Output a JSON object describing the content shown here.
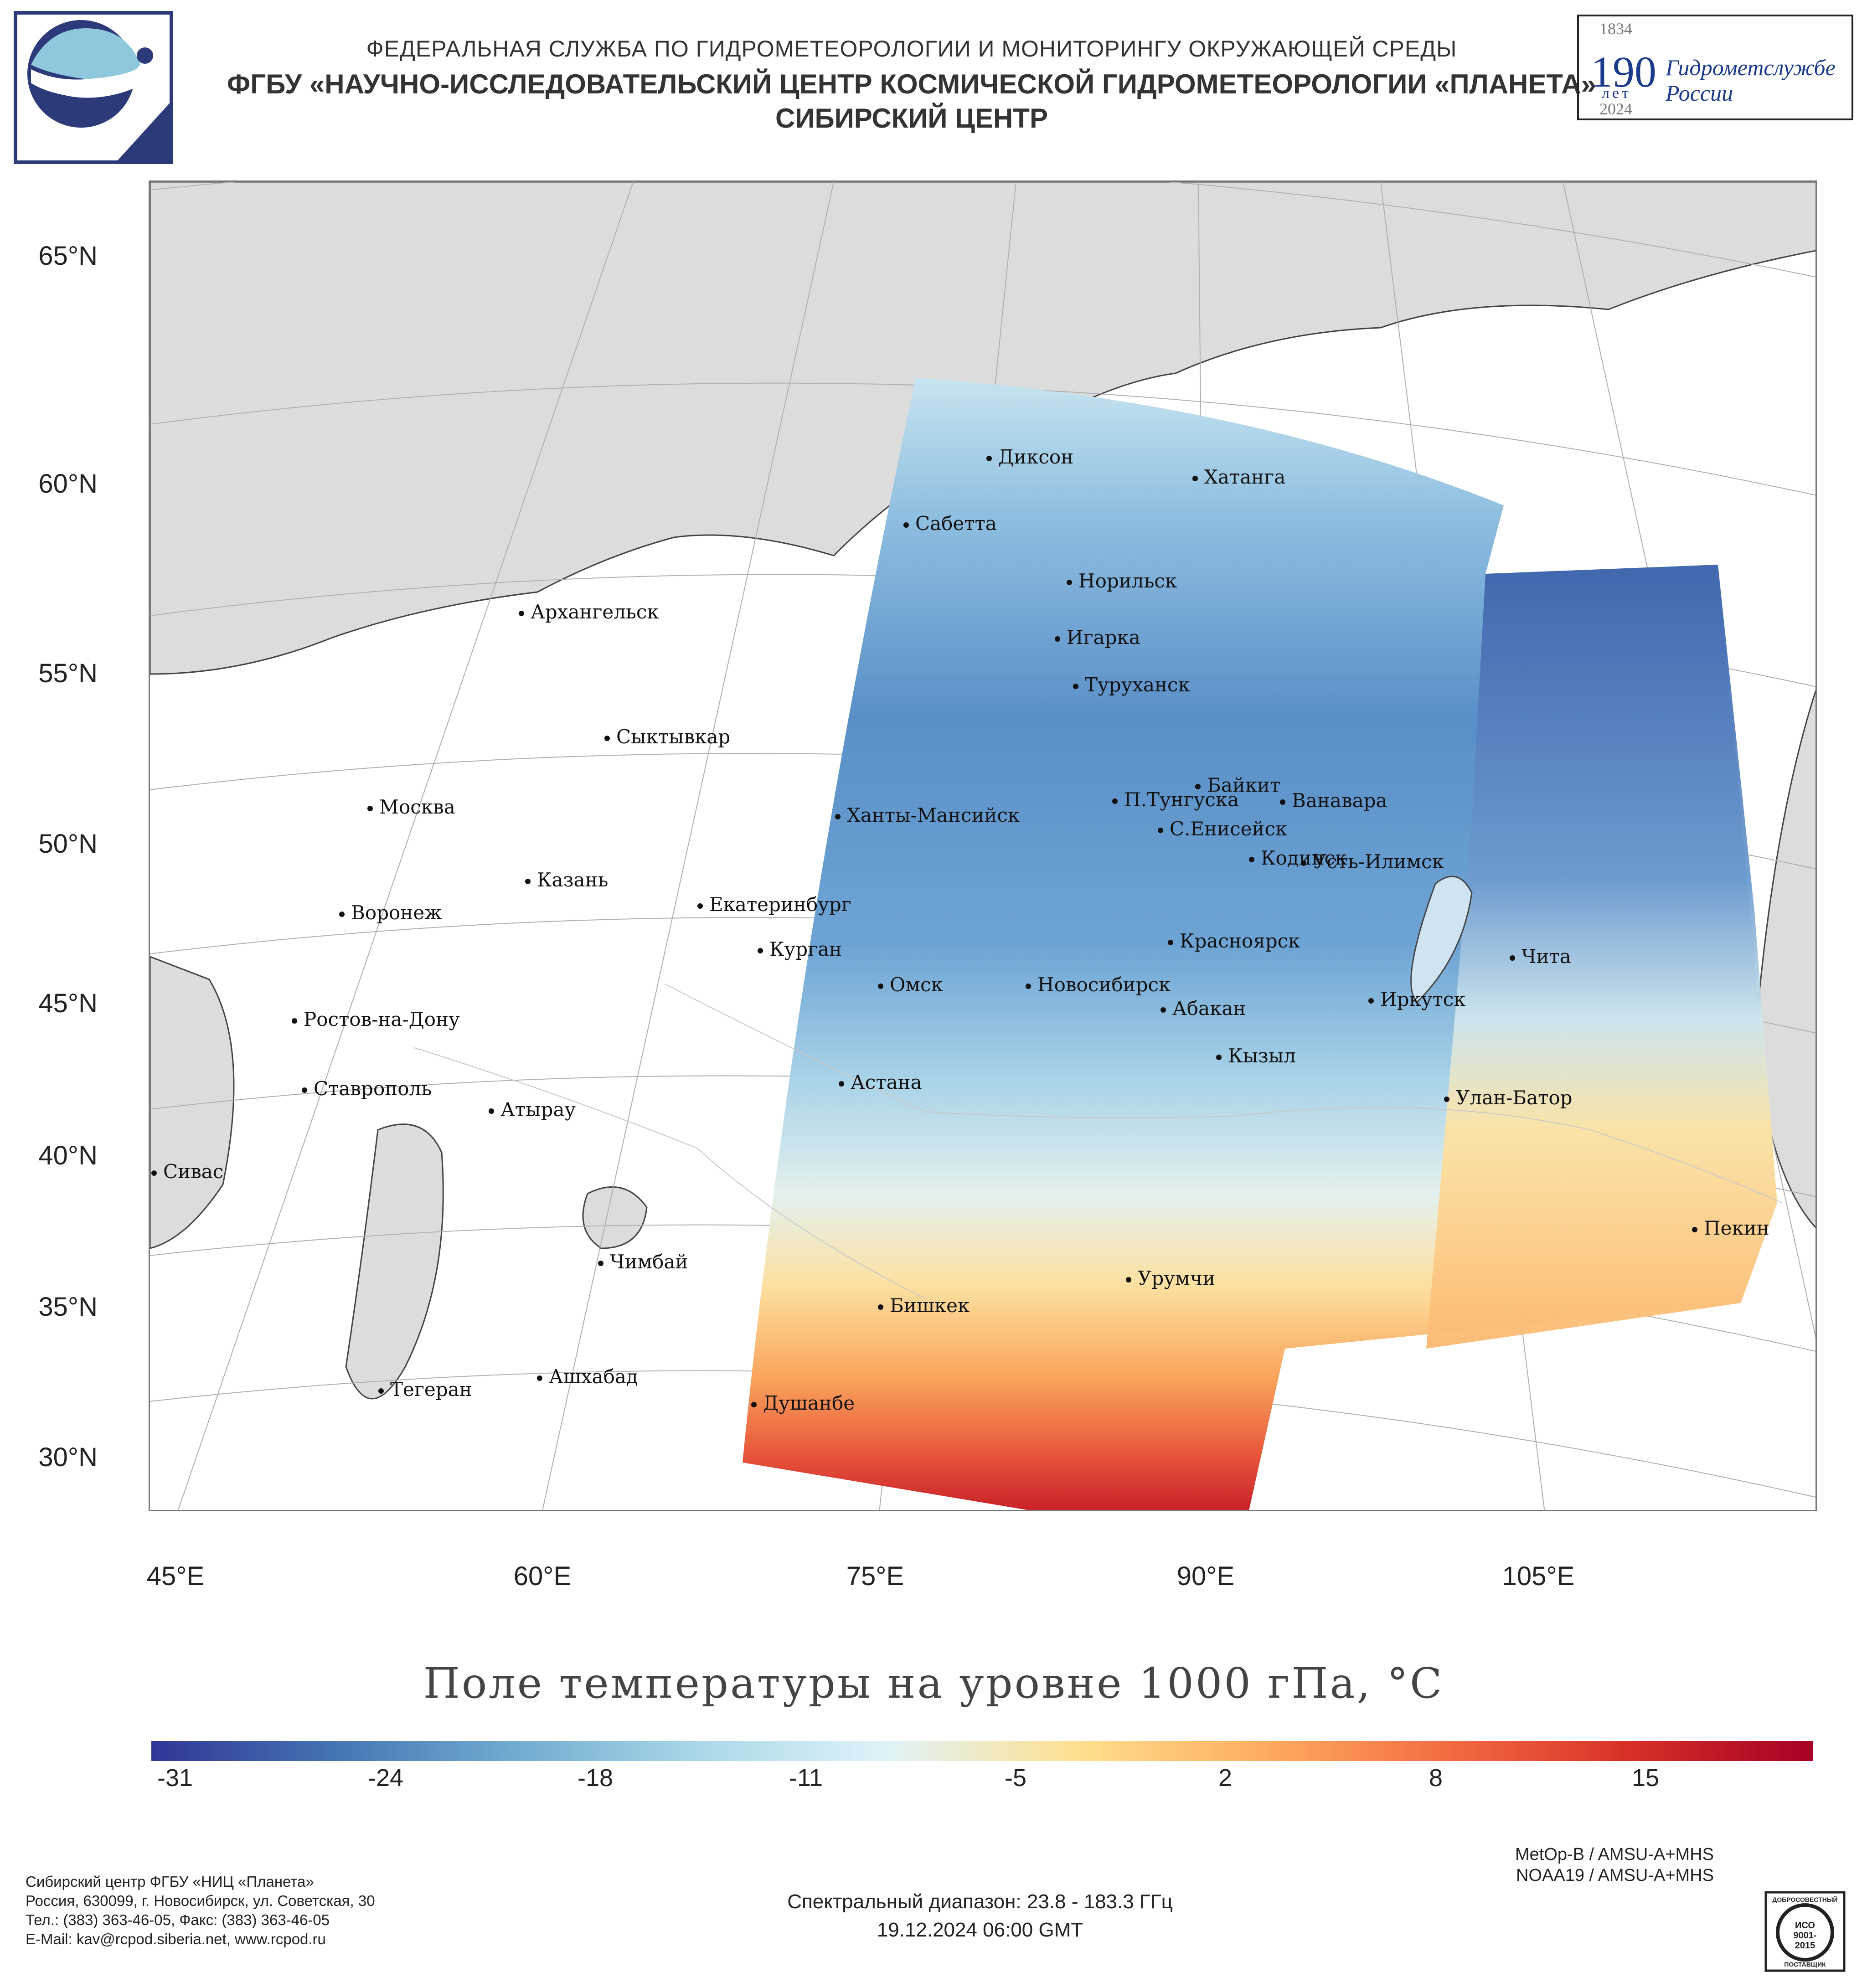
{
  "header": {
    "agency": "ФЕДЕРАЛЬНАЯ СЛУЖБА ПО ГИДРОМЕТЕОРОЛОГИИ И МОНИТОРИНГУ ОКРУЖАЮЩЕЙ СРЕДЫ",
    "center": "ФГБУ «НАУЧНО-ИССЛЕДОВАТЕЛЬСКИЙ ЦЕНТР КОСМИЧЕСКОЙ ГИДРОМЕТЕОРОЛОГИИ «ПЛАНЕТА»",
    "branch": "СИБИРСКИЙ ЦЕНТР"
  },
  "anniversary": {
    "year_start": "1834",
    "number": "190",
    "word": "лет",
    "org_line1": "Гидрометслужбе",
    "org_line2": "России",
    "year_end": "2024"
  },
  "map": {
    "lat_labels": [
      "65°N",
      "60°N",
      "55°N",
      "50°N",
      "45°N",
      "40°N",
      "35°N",
      "30°N"
    ],
    "lon_labels": [
      "45°E",
      "60°E",
      "75°E",
      "90°E",
      "105°E"
    ],
    "cities": [
      "Диксон",
      "Хатанга",
      "Сабетта",
      "Норильск",
      "Архангельск",
      "Игарка",
      "Туруханск",
      "Сыктывкар",
      "Байкит",
      "Москва",
      "П.Тунгуска",
      "Ванавара",
      "Ханты-Мансийск",
      "С.Енисейск",
      "Кодинск",
      "Усть-Илимск",
      "Казань",
      "Екатеринбург",
      "Воронеж",
      "Красноярск",
      "Курган",
      "Чита",
      "Омск",
      "Новосибирск",
      "Иркутск",
      "Ростов-на-Дону",
      "Абакан",
      "Кызыл",
      "Ставрополь",
      "Астана",
      "Улан-Батор",
      "Атырау",
      "Сивас",
      "Пекин",
      "Чимбай",
      "Урумчи",
      "Бишкек",
      "Ашхабад",
      "Тегеран",
      "Душанбе"
    ]
  },
  "colorbar": {
    "title": "Поле температуры на уровне 1000 гПа, °C",
    "ticks": [
      "-31",
      "-24",
      "-18",
      "-11",
      "-5",
      "2",
      "8",
      "15"
    ],
    "colors": [
      "#313695",
      "#4575b4",
      "#74add1",
      "#abd9e9",
      "#e0f3f8",
      "#fee090",
      "#fdae61",
      "#f46d43",
      "#d73027",
      "#a50026"
    ]
  },
  "footer": {
    "org": "Сибирский центр ФГБУ «НИЦ «Планета»",
    "address": "Россия, 630099, г. Новосибирск, ул. Советская, 30",
    "phone": "Тел.: (383) 363-46-05, Факс: (383) 363-46-05",
    "email": "E-Mail: kav@rcpod.siberia.net, www.rcpod.ru",
    "spectral": "Спектральный диапазон: 23.8 - 183.3 ГГц",
    "datetime": "19.12.2024 06:00 GMT",
    "sat1": "MetOp-B / AMSU-A+MHS",
    "sat2": "NOAA19 / AMSU-A+MHS",
    "cert_top": "ДОБРОСОВЕСТНЫЙ",
    "cert_mid": "ИСО 9001-2015",
    "cert_bottom": "ПОСТАВЩИК"
  }
}
